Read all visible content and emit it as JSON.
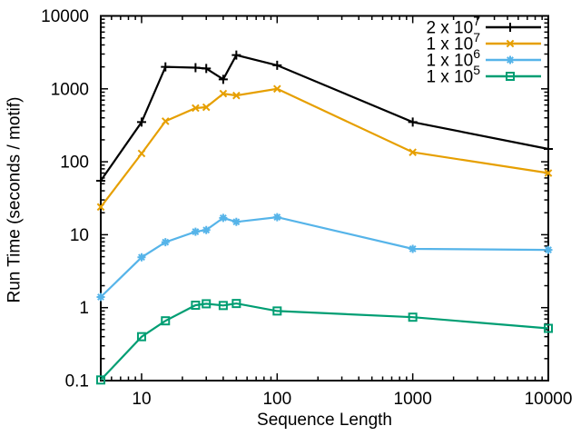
{
  "chart_data": {
    "type": "line",
    "title": "",
    "xlabel": "Sequence Length",
    "ylabel": "Run Time (seconds / motif)",
    "x_scale": "log",
    "y_scale": "log",
    "xlim": [
      5,
      10000
    ],
    "ylim": [
      0.1,
      10000
    ],
    "grid": false,
    "legend_position": "top-right-inside-no-box",
    "x_tick_labels": [
      "10",
      "100",
      "1000",
      "10000"
    ],
    "x_tick_values": [
      10,
      100,
      1000,
      10000
    ],
    "y_tick_labels": [
      "0.1",
      "1",
      "10",
      "100",
      "1000",
      "10000"
    ],
    "y_tick_values": [
      0.1,
      1,
      10,
      100,
      1000,
      10000
    ],
    "x": [
      5,
      10,
      15,
      25,
      30,
      40,
      50,
      100,
      1000,
      10000
    ],
    "series": [
      {
        "name": "2 x 10^7",
        "label_base": "2 x 10",
        "label_exp": "7",
        "color": "#000000",
        "marker": "plus",
        "values": [
          55,
          350,
          2000,
          1950,
          1900,
          1350,
          2900,
          2100,
          350,
          150
        ]
      },
      {
        "name": "1 x 10^7",
        "label_base": "1 x 10",
        "label_exp": "7",
        "color": "#E69F00",
        "marker": "cross",
        "values": [
          24,
          130,
          360,
          545,
          560,
          860,
          810,
          1000,
          135,
          70
        ]
      },
      {
        "name": "1 x 10^6",
        "label_base": "1 x 10",
        "label_exp": "6",
        "color": "#56B4E9",
        "marker": "star",
        "values": [
          1.4,
          4.9,
          7.9,
          11,
          11.6,
          17,
          15,
          17.4,
          6.4,
          6.2
        ]
      },
      {
        "name": "1 x 10^5",
        "label_base": "1 x 10",
        "label_exp": "5",
        "color": "#009E73",
        "marker": "square",
        "values": [
          0.102,
          0.4,
          0.66,
          1.08,
          1.13,
          1.07,
          1.14,
          0.9,
          0.74,
          0.52
        ]
      }
    ],
    "axis_color": "#000000",
    "background_color": "#ffffff"
  }
}
